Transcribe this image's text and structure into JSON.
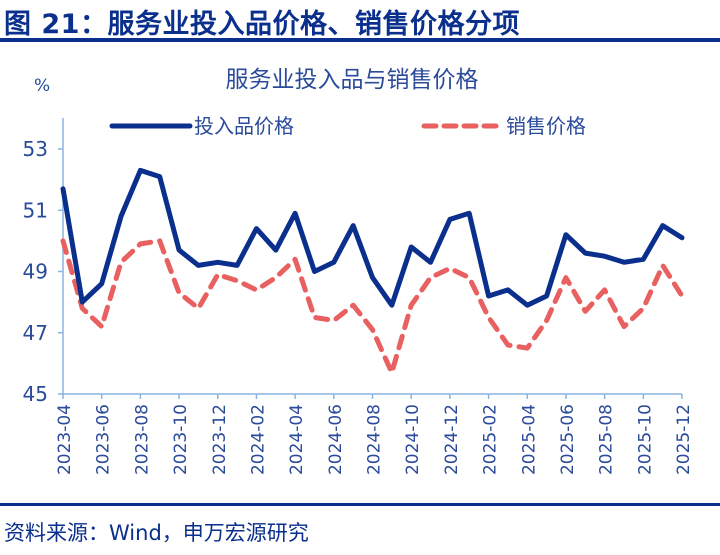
{
  "figure": {
    "title": "图 21：服务业投入品价格、销售价格分项",
    "source": "资料来源：Wind，申万宏源研究"
  },
  "chart_data": {
    "type": "line",
    "title": "服务业投入品与销售价格",
    "ylabel": "%",
    "xlabel": "",
    "ylim": [
      45,
      54
    ],
    "yticks": [
      45,
      47,
      49,
      51,
      53
    ],
    "grid": false,
    "legend_position": "top",
    "x": [
      "2023-04",
      "2023-05",
      "2023-06",
      "2023-07",
      "2023-08",
      "2023-09",
      "2023-10",
      "2023-11",
      "2023-12",
      "2024-01",
      "2024-02",
      "2024-03",
      "2024-04",
      "2024-05",
      "2024-06",
      "2024-07",
      "2024-08",
      "2024-09",
      "2024-10",
      "2024-11",
      "2024-12",
      "2025-01",
      "2025-02",
      "2025-03",
      "2025-04",
      "2025-05",
      "2025-06",
      "2025-07",
      "2025-08",
      "2025-09",
      "2025-10",
      "2025-11",
      "2025-12"
    ],
    "xtick_labels": [
      "2023-04",
      "2023-06",
      "2023-08",
      "2023-10",
      "2023-12",
      "2024-02",
      "2024-04",
      "2024-06",
      "2024-08",
      "2024-10",
      "2024-12",
      "2025-02",
      "2025-04",
      "2025-06",
      "2025-08",
      "2025-10",
      "2025-12"
    ],
    "series": [
      {
        "name": "投入品价格",
        "color": "#0a2f8c",
        "style": "solid",
        "values": [
          51.7,
          48.0,
          48.6,
          50.8,
          52.3,
          52.1,
          49.7,
          49.2,
          49.3,
          49.2,
          50.4,
          49.7,
          50.9,
          49.0,
          49.3,
          50.5,
          48.8,
          47.9,
          49.8,
          49.3,
          50.7,
          50.9,
          48.2,
          48.4,
          47.9,
          48.2,
          50.2,
          49.6,
          49.5,
          49.3,
          49.4,
          50.5,
          50.1
        ]
      },
      {
        "name": "销售价格",
        "color": "#e8605f",
        "style": "dashed",
        "values": [
          50.0,
          47.8,
          47.2,
          49.3,
          49.9,
          50.0,
          48.3,
          47.8,
          48.9,
          48.7,
          48.4,
          48.8,
          49.4,
          47.5,
          47.4,
          47.9,
          47.1,
          45.7,
          47.9,
          48.8,
          49.1,
          48.8,
          47.5,
          46.6,
          46.5,
          47.4,
          48.8,
          47.7,
          48.4,
          47.2,
          47.8,
          49.2,
          48.2
        ]
      }
    ]
  },
  "colors": {
    "brand": "#0a2f8c",
    "axis": "#8ab4e0",
    "text": "#2a4a9a"
  }
}
